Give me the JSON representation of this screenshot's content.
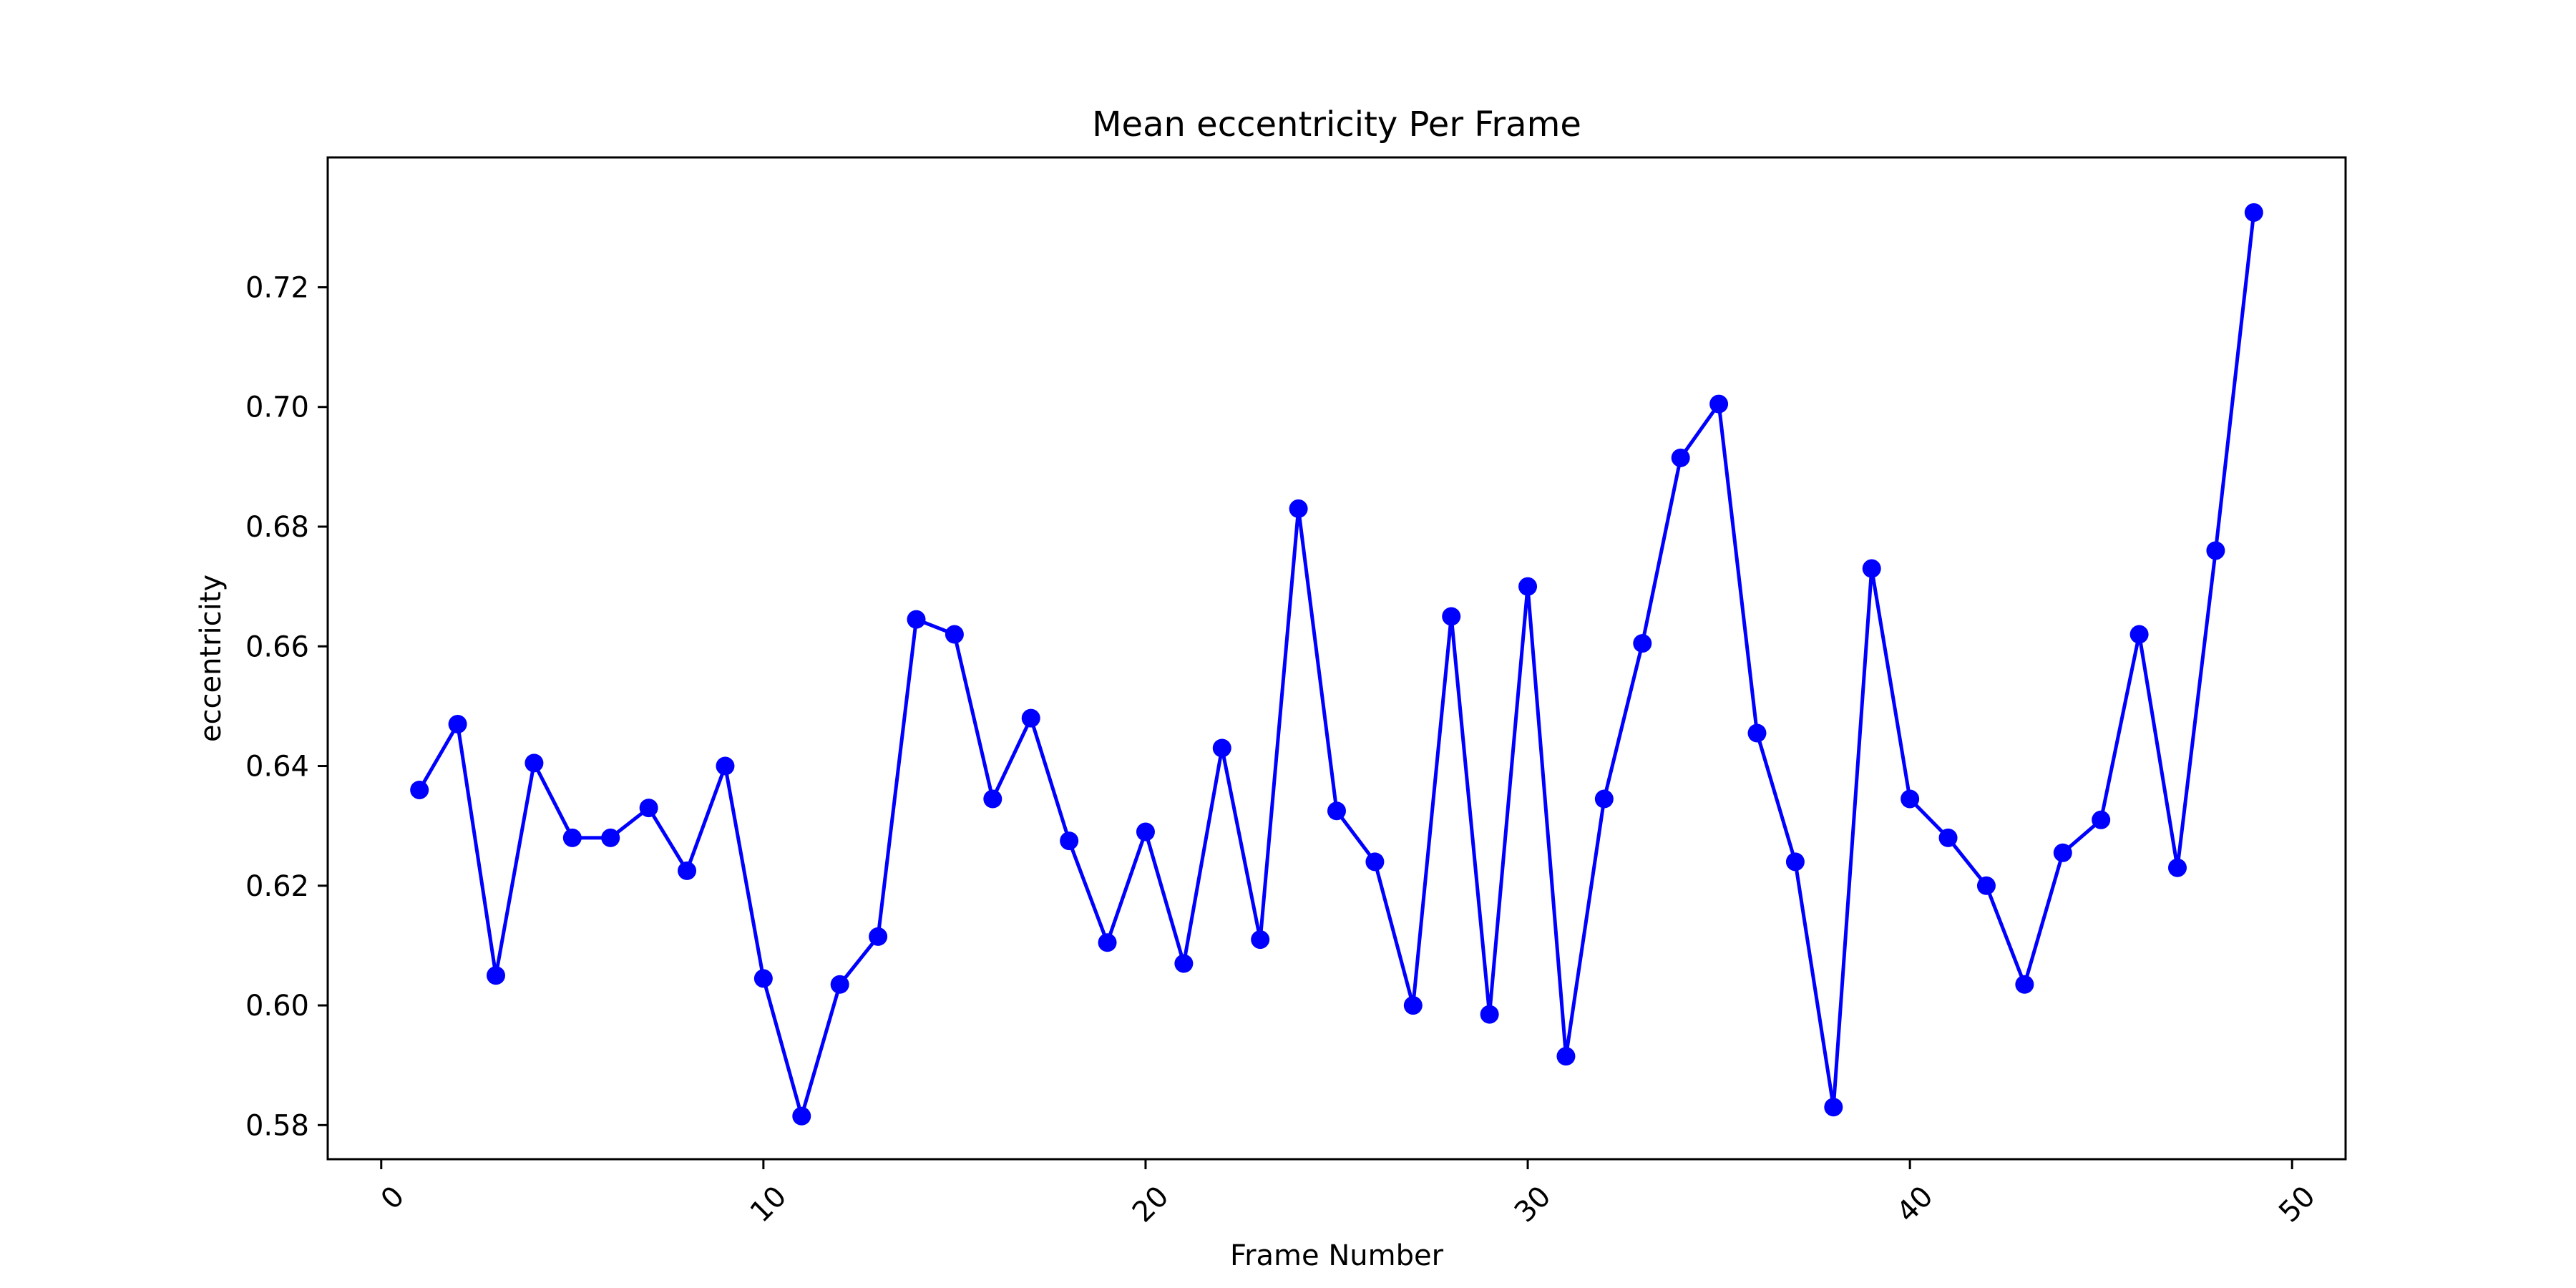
{
  "chart_data": {
    "type": "line",
    "title": "Mean eccentricity Per Frame",
    "xlabel": "Frame Number",
    "ylabel": "eccentricity",
    "xlim": [
      -1.4,
      51.4
    ],
    "ylim": [
      0.5743,
      0.7417
    ],
    "xticks": [
      0,
      10,
      20,
      30,
      40,
      50
    ],
    "yticks": [
      0.58,
      0.6,
      0.62,
      0.64,
      0.66,
      0.68,
      0.7,
      0.72
    ],
    "ytick_labels": [
      "0.58",
      "0.60",
      "0.62",
      "0.64",
      "0.66",
      "0.68",
      "0.70",
      "0.72"
    ],
    "grid": false,
    "series": [
      {
        "color": "#0000ff",
        "marker": "circle",
        "x": [
          1,
          2,
          3,
          4,
          5,
          6,
          7,
          8,
          9,
          10,
          11,
          12,
          13,
          14,
          15,
          16,
          17,
          18,
          19,
          20,
          21,
          22,
          23,
          24,
          25,
          26,
          27,
          28,
          29,
          30,
          31,
          32,
          33,
          34,
          35,
          36,
          37,
          38,
          39,
          40,
          41,
          42,
          43,
          44,
          45,
          46,
          47,
          48,
          49
        ],
        "y": [
          0.636,
          0.647,
          0.605,
          0.6405,
          0.628,
          0.628,
          0.633,
          0.6225,
          0.64,
          0.6045,
          0.5815,
          0.6035,
          0.6115,
          0.6645,
          0.662,
          0.6345,
          0.648,
          0.6275,
          0.6105,
          0.629,
          0.607,
          0.643,
          0.611,
          0.683,
          0.6325,
          0.624,
          0.6,
          0.665,
          0.5985,
          0.67,
          0.5915,
          0.6345,
          0.6605,
          0.6915,
          0.7005,
          0.6455,
          0.624,
          0.583,
          0.673,
          0.6345,
          0.628,
          0.62,
          0.6035,
          0.6255,
          0.631,
          0.662,
          0.623,
          0.676,
          0.7325
        ]
      }
    ]
  }
}
